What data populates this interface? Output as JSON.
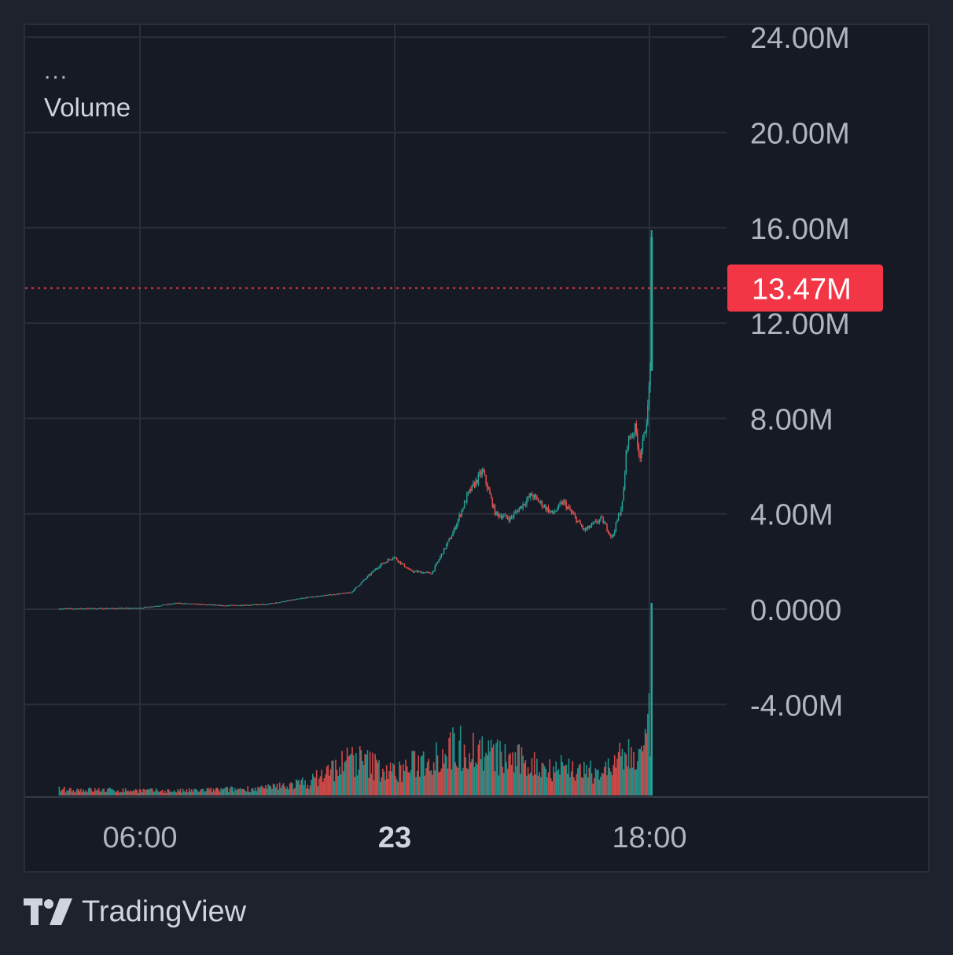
{
  "legend": {
    "more": "...",
    "indicator": "Volume"
  },
  "watermark": {
    "brand": "TradingView",
    "icon": "tradingview-logo-icon"
  },
  "colors": {
    "background": "#161a25",
    "grid": "#2a2e39",
    "up": "#26a69a",
    "down": "#ef5350",
    "price_label": "#f23645",
    "axis_text": "#b2b5be"
  },
  "chart_data": {
    "type": "candlestick",
    "price_axis": {
      "ticks": [
        "24.00M",
        "20.00M",
        "16.00M",
        "12.00M",
        "8.00M",
        "4.00M",
        "0.0000",
        "-4.00M"
      ],
      "tick_values": [
        24000000,
        20000000,
        16000000,
        12000000,
        8000000,
        4000000,
        0,
        -4000000
      ],
      "range": [
        -7500000,
        25000000
      ]
    },
    "time_axis": {
      "labels": [
        {
          "text": "06:00",
          "hour": 6,
          "bold": false
        },
        {
          "text": "23",
          "hour": 18,
          "bold": true
        },
        {
          "text": "18:00",
          "hour": 30,
          "bold": false
        }
      ],
      "range_hours": [
        0,
        34
      ]
    },
    "last_price": {
      "value": 13470000,
      "label": "13.47M"
    },
    "grid": true,
    "series": [
      {
        "kind": "price",
        "x_hours": [
          2.2,
          6,
          7.8,
          10,
          12,
          14,
          16,
          17.3,
          18,
          18.8,
          19.8,
          20.8,
          21.5,
          22.2,
          22.8,
          23.5,
          24.5,
          25.5,
          26,
          27,
          27.8,
          28.3,
          28.8,
          29,
          29.4,
          29.6,
          29.8,
          30,
          30.1
        ],
        "y": [
          20000,
          40000,
          250000,
          150000,
          200000,
          500000,
          700000,
          1800000,
          2200000,
          1600000,
          1500000,
          3200000,
          4800000,
          5800000,
          4000000,
          3800000,
          4800000,
          4000000,
          4500000,
          3300000,
          3800000,
          3000000,
          4500000,
          7000000,
          7600000,
          6400000,
          7200000,
          8500000,
          10500000
        ],
        "final": {
          "x_hours": 30.1,
          "y": 13470000,
          "high": 15900000,
          "low": 10000000
        }
      },
      {
        "kind": "volume",
        "x_hours": [
          2.2,
          8,
          12,
          14,
          16,
          17,
          18,
          20,
          21,
          22,
          23,
          24,
          25,
          26,
          27,
          28,
          29,
          29.5,
          29.8,
          30,
          30.1
        ],
        "y": [
          0.08,
          0.06,
          0.1,
          0.18,
          0.5,
          0.4,
          0.3,
          0.55,
          0.65,
          0.6,
          0.5,
          0.45,
          0.38,
          0.4,
          0.3,
          0.35,
          0.55,
          0.5,
          0.6,
          0.95,
          1.0
        ]
      }
    ]
  }
}
